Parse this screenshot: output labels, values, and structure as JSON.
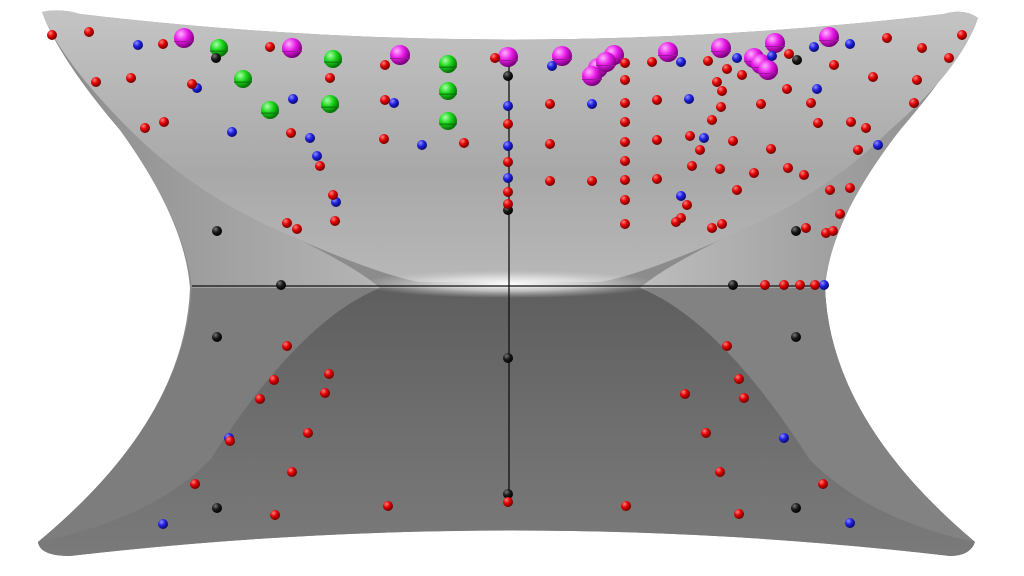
{
  "scene": {
    "colors": {
      "background": "#ffffff",
      "surface_light": "#c9c9c9",
      "surface_mid": "#9a9a9a",
      "surface_dark": "#6c6c6c",
      "axis": "#111111",
      "red": "#e00000",
      "blue": "#2020e0",
      "black": "#111111",
      "green": "#18d418",
      "magenta": "#e81ae8"
    },
    "marker_types": [
      "red-sphere",
      "blue-sphere",
      "black-sphere",
      "green-sphere",
      "magenta-sphere"
    ]
  }
}
